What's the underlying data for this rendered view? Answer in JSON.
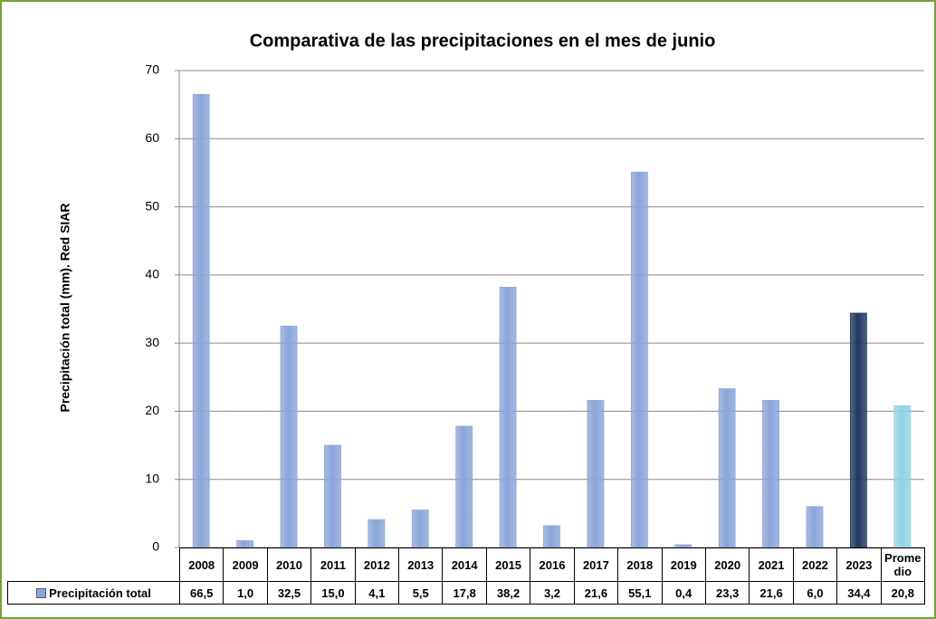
{
  "chart_data": {
    "type": "bar",
    "title": "Comparativa de las precipitaciones en el mes de junio",
    "y_label": "Precipitación total (mm). Red SIAR",
    "categories": [
      "2008",
      "2009",
      "2010",
      "2011",
      "2012",
      "2013",
      "2014",
      "2015",
      "2016",
      "2017",
      "2018",
      "2019",
      "2020",
      "2021",
      "2022",
      "2023",
      "Promedio"
    ],
    "series": [
      {
        "name": "Precipitación total",
        "color": "#8aa6d8",
        "colors": [
          "#8aa6d8",
          "#8aa6d8",
          "#8aa6d8",
          "#8aa6d8",
          "#8aa6d8",
          "#8aa6d8",
          "#8aa6d8",
          "#8aa6d8",
          "#8aa6d8",
          "#8aa6d8",
          "#8aa6d8",
          "#8aa6d8",
          "#8aa6d8",
          "#8aa6d8",
          "#8aa6d8",
          "#1f3a5f",
          "#92d3e6"
        ],
        "values": [
          66.5,
          1.0,
          32.5,
          15.0,
          4.1,
          5.5,
          17.8,
          38.2,
          3.2,
          21.6,
          55.1,
          0.4,
          23.3,
          21.6,
          6.0,
          34.4,
          20.8
        ],
        "value_labels": [
          "66,5",
          "1,0",
          "32,5",
          "15,0",
          "4,1",
          "5,5",
          "17,8",
          "38,2",
          "3,2",
          "21,6",
          "55,1",
          "0,4",
          "23,3",
          "21,6",
          "6,0",
          "34,4",
          "20,8"
        ]
      }
    ],
    "ylim": [
      0,
      70
    ],
    "yticks": [
      0,
      10,
      20,
      30,
      40,
      50,
      60,
      70
    ],
    "grid": true
  }
}
